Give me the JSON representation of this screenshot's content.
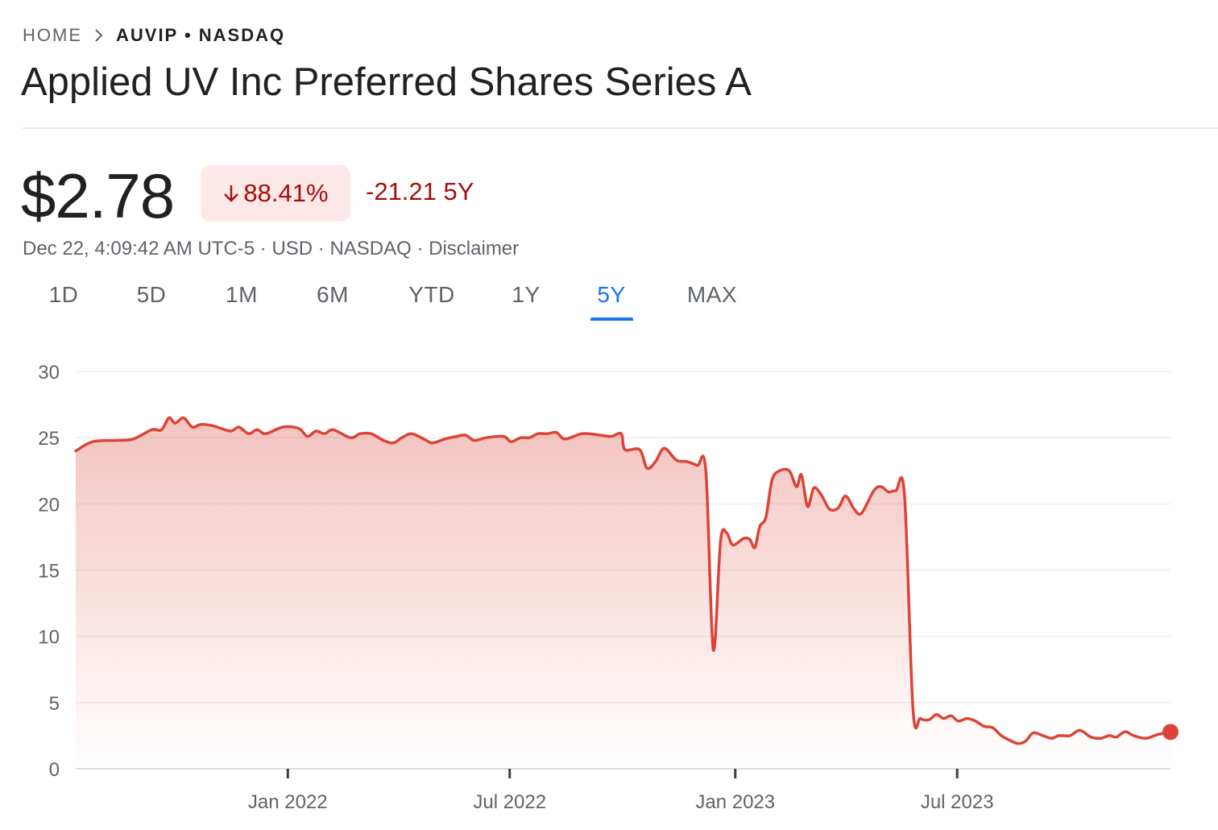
{
  "breadcrumb": {
    "home": "HOME",
    "current": "AUVIP • NASDAQ"
  },
  "title": "Applied UV Inc Preferred Shares Series A",
  "quote": {
    "price": "$2.78",
    "percent_change": "88.41%",
    "direction": "down",
    "abs_change": "-21.21 5Y",
    "meta": "Dec 22, 4:09:42 AM UTC-5 · USD · NASDAQ · Disclaimer"
  },
  "range_tabs": [
    "1D",
    "5D",
    "1M",
    "6M",
    "YTD",
    "1Y",
    "5Y",
    "MAX"
  ],
  "active_range": "5Y",
  "colors": {
    "negative": "#a50e0e",
    "line": "#db4437",
    "accent": "#1a73e8",
    "badge_bg": "#fce8e6"
  },
  "icons": {
    "breadcrumb_separator": "chevron-right-icon",
    "change_direction": "arrow-down-icon"
  },
  "chart_data": {
    "type": "area",
    "x_tick_labels": [
      "Jan 2022",
      "Jul 2022",
      "Jan 2023",
      "Jul 2023"
    ],
    "y_ticks": [
      0,
      5,
      10,
      15,
      20,
      25,
      30
    ],
    "ylim": [
      0,
      30
    ],
    "xlim": [
      "2021-07-12",
      "2023-12-22"
    ],
    "grid": true,
    "series": [
      {
        "points": [
          [
            "2021-07-12",
            24.0
          ],
          [
            "2021-07-26",
            24.7
          ],
          [
            "2021-08-15",
            24.8
          ],
          [
            "2021-08-28",
            24.9
          ],
          [
            "2021-09-12",
            25.6
          ],
          [
            "2021-09-20",
            25.6
          ],
          [
            "2021-09-26",
            26.5
          ],
          [
            "2021-10-01",
            26.1
          ],
          [
            "2021-10-08",
            26.5
          ],
          [
            "2021-10-15",
            25.8
          ],
          [
            "2021-10-22",
            26.0
          ],
          [
            "2021-11-01",
            25.9
          ],
          [
            "2021-11-15",
            25.5
          ],
          [
            "2021-11-22",
            25.8
          ],
          [
            "2021-11-30",
            25.3
          ],
          [
            "2021-12-07",
            25.6
          ],
          [
            "2021-12-14",
            25.3
          ],
          [
            "2021-12-28",
            25.8
          ],
          [
            "2022-01-10",
            25.7
          ],
          [
            "2022-01-17",
            25.1
          ],
          [
            "2022-01-24",
            25.5
          ],
          [
            "2022-01-31",
            25.3
          ],
          [
            "2022-02-07",
            25.6
          ],
          [
            "2022-02-21",
            25.0
          ],
          [
            "2022-03-01",
            25.3
          ],
          [
            "2022-03-10",
            25.3
          ],
          [
            "2022-03-20",
            24.8
          ],
          [
            "2022-03-28",
            24.6
          ],
          [
            "2022-04-04",
            25.0
          ],
          [
            "2022-04-12",
            25.3
          ],
          [
            "2022-04-22",
            24.9
          ],
          [
            "2022-04-29",
            24.6
          ],
          [
            "2022-05-09",
            24.9
          ],
          [
            "2022-05-19",
            25.1
          ],
          [
            "2022-05-26",
            25.2
          ],
          [
            "2022-06-02",
            24.8
          ],
          [
            "2022-06-12",
            25.0
          ],
          [
            "2022-06-26",
            25.1
          ],
          [
            "2022-07-02",
            24.7
          ],
          [
            "2022-07-10",
            25.0
          ],
          [
            "2022-07-17",
            25.0
          ],
          [
            "2022-07-24",
            25.3
          ],
          [
            "2022-08-01",
            25.3
          ],
          [
            "2022-08-08",
            25.4
          ],
          [
            "2022-08-15",
            24.9
          ],
          [
            "2022-08-29",
            25.3
          ],
          [
            "2022-09-12",
            25.2
          ],
          [
            "2022-09-22",
            25.1
          ],
          [
            "2022-09-30",
            25.3
          ],
          [
            "2022-10-03",
            24.1
          ],
          [
            "2022-10-15",
            24.1
          ],
          [
            "2022-10-21",
            22.7
          ],
          [
            "2022-10-28",
            23.2
          ],
          [
            "2022-11-04",
            24.2
          ],
          [
            "2022-11-14",
            23.3
          ],
          [
            "2022-11-22",
            23.2
          ],
          [
            "2022-12-01",
            22.9
          ],
          [
            "2022-12-08",
            22.5
          ],
          [
            "2022-12-14",
            9.0
          ],
          [
            "2022-12-20",
            17.2
          ],
          [
            "2022-12-25",
            17.8
          ],
          [
            "2022-12-30",
            16.9
          ],
          [
            "2023-01-08",
            17.4
          ],
          [
            "2023-01-13",
            17.3
          ],
          [
            "2023-01-17",
            16.7
          ],
          [
            "2023-01-21",
            18.3
          ],
          [
            "2023-01-26",
            19.0
          ],
          [
            "2023-01-31",
            21.8
          ],
          [
            "2023-02-06",
            22.5
          ],
          [
            "2023-02-14",
            22.5
          ],
          [
            "2023-02-20",
            21.3
          ],
          [
            "2023-02-24",
            22.2
          ],
          [
            "2023-03-01",
            19.8
          ],
          [
            "2023-03-06",
            21.2
          ],
          [
            "2023-03-12",
            20.7
          ],
          [
            "2023-03-19",
            19.6
          ],
          [
            "2023-03-26",
            19.7
          ],
          [
            "2023-04-01",
            20.6
          ],
          [
            "2023-04-08",
            19.6
          ],
          [
            "2023-04-14",
            19.3
          ],
          [
            "2023-04-24",
            21.0
          ],
          [
            "2023-04-30",
            21.3
          ],
          [
            "2023-05-06",
            20.9
          ],
          [
            "2023-05-12",
            21.0
          ],
          [
            "2023-05-19",
            20.7
          ],
          [
            "2023-05-26",
            4.5
          ],
          [
            "2023-06-01",
            3.8
          ],
          [
            "2023-06-08",
            3.7
          ],
          [
            "2023-06-14",
            4.1
          ],
          [
            "2023-06-20",
            3.8
          ],
          [
            "2023-06-26",
            4.0
          ],
          [
            "2023-07-02",
            3.6
          ],
          [
            "2023-07-09",
            3.8
          ],
          [
            "2023-07-16",
            3.6
          ],
          [
            "2023-07-23",
            3.2
          ],
          [
            "2023-07-30",
            3.1
          ],
          [
            "2023-08-06",
            2.5
          ],
          [
            "2023-08-14",
            2.1
          ],
          [
            "2023-08-20",
            1.9
          ],
          [
            "2023-08-26",
            2.1
          ],
          [
            "2023-09-01",
            2.7
          ],
          [
            "2023-09-09",
            2.5
          ],
          [
            "2023-09-16",
            2.3
          ],
          [
            "2023-09-22",
            2.5
          ],
          [
            "2023-10-01",
            2.5
          ],
          [
            "2023-10-09",
            2.9
          ],
          [
            "2023-10-18",
            2.4
          ],
          [
            "2023-10-26",
            2.3
          ],
          [
            "2023-11-02",
            2.5
          ],
          [
            "2023-11-08",
            2.4
          ],
          [
            "2023-11-15",
            2.8
          ],
          [
            "2023-11-22",
            2.5
          ],
          [
            "2023-12-02",
            2.3
          ],
          [
            "2023-12-12",
            2.6
          ],
          [
            "2023-12-22",
            2.78
          ]
        ]
      }
    ]
  }
}
